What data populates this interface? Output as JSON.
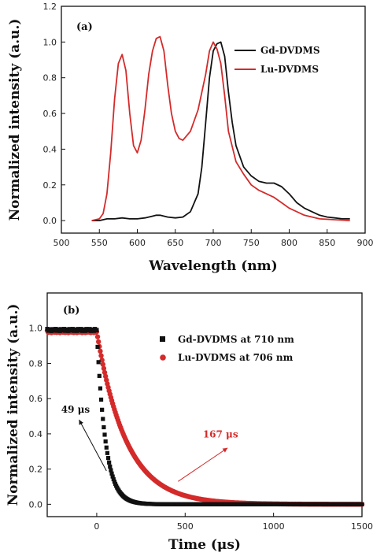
{
  "colors": {
    "black": "#111111",
    "red": "#d42a2a"
  },
  "chart_data": [
    {
      "type": "line",
      "panel_label": "(a)",
      "xlabel": "Wavelength (nm)",
      "ylabel": "Normalized intensity (a.u.)",
      "xlim": [
        500,
        900
      ],
      "ylim": [
        -0.07,
        1.2
      ],
      "xticks": [
        500,
        550,
        600,
        650,
        700,
        750,
        800,
        850,
        900
      ],
      "yticks": [
        0.0,
        0.2,
        0.4,
        0.6,
        0.8,
        1.0,
        1.2
      ],
      "ytick_labels": [
        "0.0",
        "0.2",
        "0.4",
        "0.6",
        "0.8",
        "1.0",
        "1.2"
      ],
      "legend_position": "top-right",
      "series": [
        {
          "name": "Gd-DVDMS",
          "color": "#111111",
          "x": [
            540,
            550,
            555,
            560,
            570,
            580,
            590,
            600,
            610,
            620,
            625,
            630,
            640,
            650,
            660,
            670,
            680,
            685,
            690,
            695,
            700,
            705,
            710,
            715,
            720,
            725,
            730,
            740,
            750,
            760,
            770,
            780,
            790,
            800,
            810,
            820,
            830,
            840,
            850,
            860,
            870,
            880
          ],
          "y": [
            0.0,
            0.0,
            0.005,
            0.01,
            0.01,
            0.015,
            0.01,
            0.01,
            0.015,
            0.025,
            0.03,
            0.03,
            0.02,
            0.015,
            0.02,
            0.05,
            0.15,
            0.3,
            0.55,
            0.8,
            0.95,
            0.99,
            1.0,
            0.92,
            0.72,
            0.55,
            0.42,
            0.3,
            0.25,
            0.22,
            0.21,
            0.21,
            0.19,
            0.15,
            0.1,
            0.07,
            0.05,
            0.03,
            0.02,
            0.015,
            0.01,
            0.01
          ]
        },
        {
          "name": "Lu-DVDMS",
          "color": "#d42a2a",
          "x": [
            540,
            550,
            555,
            560,
            565,
            570,
            575,
            580,
            585,
            590,
            595,
            600,
            605,
            610,
            615,
            620,
            625,
            630,
            635,
            640,
            645,
            650,
            655,
            660,
            670,
            680,
            690,
            695,
            700,
            705,
            710,
            715,
            720,
            730,
            740,
            750,
            760,
            770,
            780,
            790,
            800,
            820,
            840,
            860,
            880
          ],
          "y": [
            0.0,
            0.01,
            0.04,
            0.15,
            0.38,
            0.68,
            0.88,
            0.93,
            0.84,
            0.6,
            0.42,
            0.38,
            0.45,
            0.62,
            0.82,
            0.95,
            1.02,
            1.03,
            0.95,
            0.76,
            0.6,
            0.5,
            0.46,
            0.45,
            0.5,
            0.62,
            0.82,
            0.95,
            1.0,
            0.96,
            0.88,
            0.7,
            0.5,
            0.33,
            0.26,
            0.2,
            0.17,
            0.15,
            0.13,
            0.1,
            0.07,
            0.03,
            0.01,
            0.005,
            0.0
          ]
        }
      ]
    },
    {
      "type": "scatter",
      "panel_label": "(b)",
      "xlabel": "Time (μs)",
      "ylabel": "Normalized intensity (a.u.)",
      "xlim": [
        -280,
        1500
      ],
      "ylim": [
        -0.07,
        1.2
      ],
      "xticks": [
        0,
        500,
        1000,
        1500
      ],
      "yticks": [
        0.0,
        0.2,
        0.4,
        0.6,
        0.8,
        1.0
      ],
      "ytick_labels": [
        "0.0",
        "0.2",
        "0.4",
        "0.6",
        "0.8",
        "1.0"
      ],
      "legend_position": "top-right",
      "series": [
        {
          "name": "Gd-DVDMS at 710 nm",
          "color": "#111111",
          "marker": "square",
          "pre_value": 0.99,
          "pre_x_range": [
            -280,
            0
          ],
          "decay_start": 0,
          "decay_end": 1500,
          "lifetime": 49
        },
        {
          "name": "Lu-DVDMS at 706 nm",
          "color": "#d42a2a",
          "marker": "circle",
          "pre_value": 0.98,
          "pre_x_range": [
            -280,
            0
          ],
          "decay_start": 0,
          "decay_end": 1500,
          "lifetime": 167
        }
      ],
      "annotations": [
        {
          "text": "49 μs",
          "color": "#111111",
          "x": -120,
          "y": 0.52,
          "arrow_from": [
            55,
            0.19
          ],
          "arrow_to": [
            -100,
            0.48
          ]
        },
        {
          "text": "167 μs",
          "color": "#d42a2a",
          "x": 700,
          "y": 0.38,
          "arrow_from": [
            460,
            0.13
          ],
          "arrow_to": [
            740,
            0.32
          ]
        }
      ]
    }
  ]
}
